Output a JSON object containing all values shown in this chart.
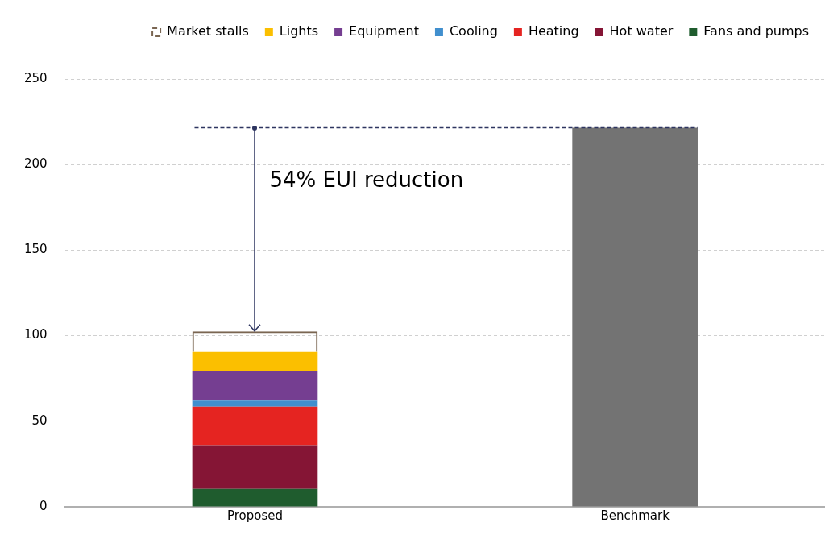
{
  "chart_data": {
    "type": "bar",
    "stacked": true,
    "categories": [
      "Proposed",
      "Benchmark"
    ],
    "series": [
      {
        "name": "Fans and pumps",
        "color": "#1f5c2e",
        "values": [
          10.5,
          null
        ]
      },
      {
        "name": "Hot water",
        "color": "#851535",
        "values": [
          25.5,
          null
        ]
      },
      {
        "name": "Heating",
        "color": "#e52421",
        "values": [
          22.5,
          null
        ]
      },
      {
        "name": "Cooling",
        "color": "#418fce",
        "values": [
          3.5,
          null
        ]
      },
      {
        "name": "Equipment",
        "color": "#753e91",
        "values": [
          17.5,
          null
        ]
      },
      {
        "name": "Lights",
        "color": "#fbbf00",
        "values": [
          11,
          null
        ]
      },
      {
        "name": "Market stalls",
        "color": "#7a6652",
        "line_style": "dashed",
        "values": [
          12,
          null
        ]
      },
      {
        "color": "#737373",
        "values": [
          null,
          221.5
        ]
      }
    ],
    "ylim": [
      0,
      250
    ],
    "yticks": [
      0,
      50,
      100,
      150,
      200,
      250
    ],
    "grid": "y",
    "legend": "top",
    "ref_lines": [
      {
        "axis": "y",
        "value": 221.5,
        "color": "#2e3560",
        "line_style": "dashed"
      }
    ],
    "annotations": [
      "54% EUI reduction"
    ]
  }
}
